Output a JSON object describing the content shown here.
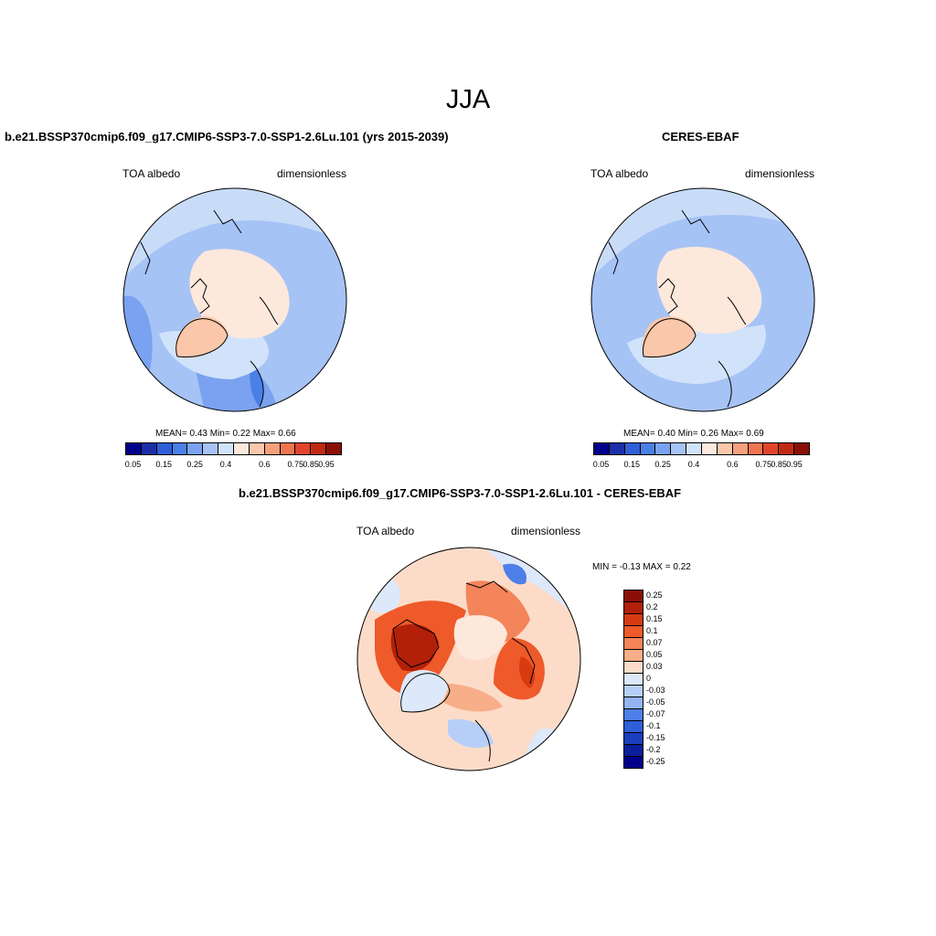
{
  "page": {
    "title": "JJA"
  },
  "panels": {
    "model": {
      "title": "b.e21.BSSP370cmip6.f09_g17.CMIP6-SSP3-7.0-SSP1-2.6Lu.101 (yrs 2015-2039)",
      "left_label": "TOA albedo",
      "right_label": "dimensionless",
      "stats": "MEAN=   0.43  Min=    0.22  Max=    0.66"
    },
    "obs": {
      "title": "CERES-EBAF",
      "left_label": "TOA albedo",
      "right_label": "dimensionless",
      "stats": "MEAN=   0.40  Min=    0.26  Max=    0.69"
    },
    "diff": {
      "title": "b.e21.BSSP370cmip6.f09_g17.CMIP6-SSP3-7.0-SSP1-2.6Lu.101 - CERES-EBAF",
      "left_label": "TOA albedo",
      "right_label": "dimensionless",
      "stats": "MIN =   -0.13 MAX =    0.22"
    }
  },
  "colorbar_abs": {
    "colors": [
      "#00008b",
      "#1a2fa8",
      "#2f5fd8",
      "#4a7fe6",
      "#7aa2f0",
      "#a6c3f5",
      "#d1e3fb",
      "#fde8dc",
      "#fbc7aa",
      "#f6a07c",
      "#ef7550",
      "#e0452a",
      "#c02a12",
      "#8b0f05"
    ],
    "ticks": [
      "0.05",
      "0.15",
      "0.25",
      "0.4",
      "0.6",
      "0.75",
      "0.85",
      "0.95"
    ]
  },
  "colorbar_diff": {
    "colors": [
      "#8b0f05",
      "#b3200a",
      "#d83a12",
      "#ee5a2a",
      "#f4845a",
      "#f8ae88",
      "#fcdcc8",
      "#dde9fb",
      "#b7cff7",
      "#93b3f2",
      "#4e7ee8",
      "#2f5fd8",
      "#1a3fbf",
      "#0a1f9c",
      "#00008b"
    ],
    "labels": [
      "0.25",
      "0.2",
      "0.15",
      "0.1",
      "0.07",
      "0.05",
      "0.03",
      "0",
      "-0.03",
      "-0.05",
      "-0.07",
      "-0.1",
      "-0.15",
      "-0.2",
      "-0.25"
    ]
  }
}
